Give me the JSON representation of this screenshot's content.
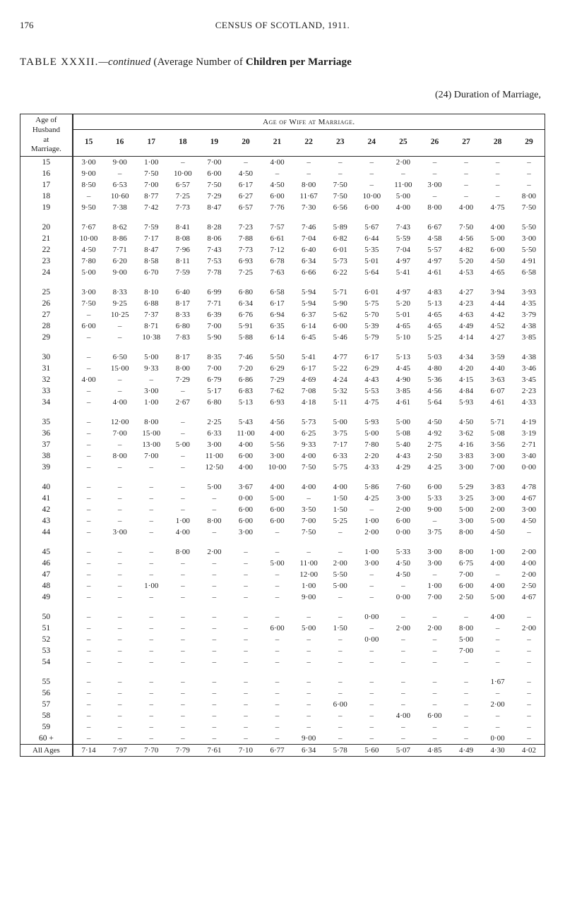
{
  "page": {
    "number": "176",
    "running_title": "CENSUS OF SCOTLAND, 1911."
  },
  "caption": {
    "label_prefix": "TABLE ",
    "roman": "XXXII.",
    "cont": "—continued",
    "rest": " (Average Number of ",
    "bold_tail": "Children per Marriage"
  },
  "duration_line": "(24) Duration of Marriage,",
  "headers": {
    "stub": [
      "Age of",
      "Husband",
      "at",
      "Marriage."
    ],
    "wife_span": "Age of Wife at Marriage.",
    "cols": [
      "15",
      "16",
      "17",
      "18",
      "19",
      "20",
      "21",
      "22",
      "23",
      "24",
      "25",
      "26",
      "27",
      "28",
      "29"
    ]
  },
  "dash": "–",
  "groups": [
    {
      "rows": [
        {
          "label": "15",
          "v": [
            "3·00",
            "9·00",
            "1·00",
            "–",
            "7·00",
            "–",
            "4·00",
            "–",
            "–",
            "–",
            "2·00",
            "–",
            "–",
            "–",
            "–"
          ]
        },
        {
          "label": "16",
          "v": [
            "9·00",
            "–",
            "7·50",
            "10·00",
            "6·00",
            "4·50",
            "–",
            "–",
            "–",
            "–",
            "–",
            "–",
            "–",
            "–",
            "–"
          ]
        },
        {
          "label": "17",
          "v": [
            "8·50",
            "6·53",
            "7·00",
            "6·57",
            "7·50",
            "6·17",
            "4·50",
            "8·00",
            "7·50",
            "–",
            "11·00",
            "3·00",
            "–",
            "–",
            "–"
          ]
        },
        {
          "label": "18",
          "v": [
            "–",
            "10·60",
            "8·77",
            "7·25",
            "7·29",
            "6·27",
            "6·00",
            "11·67",
            "7·50",
            "10·00",
            "5·00",
            "–",
            "–",
            "–",
            "8·00"
          ]
        },
        {
          "label": "19",
          "v": [
            "9·50",
            "7·38",
            "7·42",
            "7·73",
            "8·47",
            "6·57",
            "7·76",
            "7·30",
            "6·56",
            "6·00",
            "4·00",
            "8·00",
            "4·00",
            "4·75",
            "7·50"
          ]
        }
      ]
    },
    {
      "rows": [
        {
          "label": "20",
          "v": [
            "7·67",
            "8·62",
            "7·59",
            "8·41",
            "8·28",
            "7·23",
            "7·57",
            "7·46",
            "5·89",
            "5·67",
            "7·43",
            "6·67",
            "7·50",
            "4·00",
            "5·50"
          ]
        },
        {
          "label": "21",
          "v": [
            "10·00",
            "8·86",
            "7·17",
            "8·08",
            "8·06",
            "7·88",
            "6·61",
            "7·04",
            "6·82",
            "6·44",
            "5·59",
            "4·58",
            "4·56",
            "5·00",
            "3·00"
          ]
        },
        {
          "label": "22",
          "v": [
            "4·50",
            "7·71",
            "8·47",
            "7·96",
            "7·43",
            "7·73",
            "7·12",
            "6·40",
            "6·01",
            "5·35",
            "7·04",
            "5·57",
            "4·82",
            "6·00",
            "5·50"
          ]
        },
        {
          "label": "23",
          "v": [
            "7·80",
            "6·20",
            "8·58",
            "8·11",
            "7·53",
            "6·93",
            "6·78",
            "6·34",
            "5·73",
            "5·01",
            "4·97",
            "4·97",
            "5·20",
            "4·50",
            "4·91"
          ]
        },
        {
          "label": "24",
          "v": [
            "5·00",
            "9·00",
            "6·70",
            "7·59",
            "7·78",
            "7·25",
            "7·63",
            "6·66",
            "6·22",
            "5·64",
            "5·41",
            "4·61",
            "4·53",
            "4·65",
            "6·58"
          ]
        }
      ]
    },
    {
      "rows": [
        {
          "label": "25",
          "v": [
            "3·00",
            "8·33",
            "8·10",
            "6·40",
            "6·99",
            "6·80",
            "6·58",
            "5·94",
            "5·71",
            "6·01",
            "4·97",
            "4·83",
            "4·27",
            "3·94",
            "3·93"
          ]
        },
        {
          "label": "26",
          "v": [
            "7·50",
            "9·25",
            "6·88",
            "8·17",
            "7·71",
            "6·34",
            "6·17",
            "5·94",
            "5·90",
            "5·75",
            "5·20",
            "5·13",
            "4·23",
            "4·44",
            "4·35"
          ]
        },
        {
          "label": "27",
          "v": [
            "–",
            "10·25",
            "7·37",
            "8·33",
            "6·39",
            "6·76",
            "6·94",
            "6·37",
            "5·62",
            "5·70",
            "5·01",
            "4·65",
            "4·63",
            "4·42",
            "3·79"
          ]
        },
        {
          "label": "28",
          "v": [
            "6·00",
            "–",
            "8·71",
            "6·80",
            "7·00",
            "5·91",
            "6·35",
            "6·14",
            "6·00",
            "5·39",
            "4·65",
            "4·65",
            "4·49",
            "4·52",
            "4·38"
          ]
        },
        {
          "label": "29",
          "v": [
            "–",
            "–",
            "10·38",
            "7·83",
            "5·90",
            "5·88",
            "6·14",
            "6·45",
            "5·46",
            "5·79",
            "5·10",
            "5·25",
            "4·14",
            "4·27",
            "3·85"
          ]
        }
      ]
    },
    {
      "rows": [
        {
          "label": "30",
          "v": [
            "–",
            "6·50",
            "5·00",
            "8·17",
            "8·35",
            "7·46",
            "5·50",
            "5·41",
            "4·77",
            "6·17",
            "5·13",
            "5·03",
            "4·34",
            "3·59",
            "4·38"
          ]
        },
        {
          "label": "31",
          "v": [
            "–",
            "15·00",
            "9·33",
            "8·00",
            "7·00",
            "7·20",
            "6·29",
            "6·17",
            "5·22",
            "6·29",
            "4·45",
            "4·80",
            "4·20",
            "4·40",
            "3·46"
          ]
        },
        {
          "label": "32",
          "v": [
            "4·00",
            "–",
            "–",
            "7·29",
            "6·79",
            "6·86",
            "7·29",
            "4·69",
            "4·24",
            "4·43",
            "4·90",
            "5·36",
            "4·15",
            "3·63",
            "3·45"
          ]
        },
        {
          "label": "33",
          "v": [
            "–",
            "–",
            "3·00",
            "–",
            "5·17",
            "6·83",
            "7·62",
            "7·08",
            "5·32",
            "5·53",
            "3·85",
            "4·56",
            "4·84",
            "6·07",
            "2·23"
          ]
        },
        {
          "label": "34",
          "v": [
            "–",
            "4·00",
            "1·00",
            "2·67",
            "6·80",
            "5·13",
            "6·93",
            "4·18",
            "5·11",
            "4·75",
            "4·61",
            "5·64",
            "5·93",
            "4·61",
            "4·33"
          ]
        }
      ]
    },
    {
      "rows": [
        {
          "label": "35",
          "v": [
            "–",
            "12·00",
            "8·00",
            "–",
            "2·25",
            "5·43",
            "4·56",
            "5·73",
            "5·00",
            "5·93",
            "5·00",
            "4·50",
            "4·50",
            "5·71",
            "4·19"
          ]
        },
        {
          "label": "36",
          "v": [
            "–",
            "7·00",
            "15·00",
            "–",
            "6·33",
            "11·00",
            "4·00",
            "6·25",
            "3·75",
            "5·00",
            "5·08",
            "4·92",
            "3·62",
            "5·08",
            "3·19"
          ]
        },
        {
          "label": "37",
          "v": [
            "–",
            "–",
            "13·00",
            "5·00",
            "3·00",
            "4·00",
            "5·56",
            "9·33",
            "7·17",
            "7·80",
            "5·40",
            "2·75",
            "4·16",
            "3·56",
            "2·71"
          ]
        },
        {
          "label": "38",
          "v": [
            "–",
            "8·00",
            "7·00",
            "–",
            "11·00",
            "6·00",
            "3·00",
            "4·00",
            "6·33",
            "2·20",
            "4·43",
            "2·50",
            "3·83",
            "3·00",
            "3·40"
          ]
        },
        {
          "label": "39",
          "v": [
            "–",
            "–",
            "–",
            "–",
            "12·50",
            "4·00",
            "10·00",
            "7·50",
            "5·75",
            "4·33",
            "4·29",
            "4·25",
            "3·00",
            "7·00",
            "0·00"
          ]
        }
      ]
    },
    {
      "rows": [
        {
          "label": "40",
          "v": [
            "–",
            "–",
            "–",
            "–",
            "5·00",
            "3·67",
            "4·00",
            "4·00",
            "4·00",
            "5·86",
            "7·60",
            "6·00",
            "5·29",
            "3·83",
            "4·78"
          ]
        },
        {
          "label": "41",
          "v": [
            "–",
            "–",
            "–",
            "–",
            "–",
            "0·00",
            "5·00",
            "–",
            "1·50",
            "4·25",
            "3·00",
            "5·33",
            "3·25",
            "3·00",
            "4·67"
          ]
        },
        {
          "label": "42",
          "v": [
            "–",
            "–",
            "–",
            "–",
            "–",
            "6·00",
            "6·00",
            "3·50",
            "1·50",
            "–",
            "2·00",
            "9·00",
            "5·00",
            "2·00",
            "3·00"
          ]
        },
        {
          "label": "43",
          "v": [
            "–",
            "–",
            "–",
            "1·00",
            "8·00",
            "6·00",
            "6·00",
            "7·00",
            "5·25",
            "1·00",
            "6·00",
            "–",
            "3·00",
            "5·00",
            "4·50"
          ]
        },
        {
          "label": "44",
          "v": [
            "–",
            "3·00",
            "–",
            "4·00",
            "–",
            "3·00",
            "–",
            "7·50",
            "–",
            "2·00",
            "0·00",
            "3·75",
            "8·00",
            "4·50",
            "–"
          ]
        }
      ]
    },
    {
      "rows": [
        {
          "label": "45",
          "v": [
            "–",
            "–",
            "–",
            "8·00",
            "2·00",
            "–",
            "–",
            "–",
            "–",
            "1·00",
            "5·33",
            "3·00",
            "8·00",
            "1·00",
            "2·00"
          ]
        },
        {
          "label": "46",
          "v": [
            "–",
            "–",
            "–",
            "–",
            "–",
            "–",
            "5·00",
            "11·00",
            "2·00",
            "3·00",
            "4·50",
            "3·00",
            "6·75",
            "4·00",
            "4·00"
          ]
        },
        {
          "label": "47",
          "v": [
            "–",
            "–",
            "–",
            "–",
            "–",
            "–",
            "–",
            "12·00",
            "5·50",
            "–",
            "4·50",
            "–",
            "7·00",
            "–",
            "2·00"
          ]
        },
        {
          "label": "48",
          "v": [
            "–",
            "–",
            "1·00",
            "–",
            "–",
            "–",
            "–",
            "1·00",
            "5·00",
            "–",
            "–",
            "1·00",
            "6·00",
            "4·00",
            "2·50"
          ]
        },
        {
          "label": "49",
          "v": [
            "–",
            "–",
            "–",
            "–",
            "–",
            "–",
            "–",
            "9·00",
            "–",
            "–",
            "0·00",
            "7·00",
            "2·50",
            "5·00",
            "4·67"
          ]
        }
      ]
    },
    {
      "rows": [
        {
          "label": "50",
          "v": [
            "–",
            "–",
            "–",
            "–",
            "–",
            "–",
            "–",
            "–",
            "–",
            "0·00",
            "–",
            "–",
            "–",
            "4·00",
            "–"
          ]
        },
        {
          "label": "51",
          "v": [
            "–",
            "–",
            "–",
            "–",
            "–",
            "–",
            "6·00",
            "5·00",
            "1·50",
            "–",
            "2·00",
            "2·00",
            "8·00",
            "–",
            "2·00"
          ]
        },
        {
          "label": "52",
          "v": [
            "–",
            "–",
            "–",
            "–",
            "–",
            "–",
            "–",
            "–",
            "–",
            "0·00",
            "–",
            "–",
            "5·00",
            "–",
            "–"
          ]
        },
        {
          "label": "53",
          "v": [
            "–",
            "–",
            "–",
            "–",
            "–",
            "–",
            "–",
            "–",
            "–",
            "–",
            "–",
            "–",
            "7·00",
            "–",
            "–"
          ]
        },
        {
          "label": "54",
          "v": [
            "–",
            "–",
            "–",
            "–",
            "–",
            "–",
            "–",
            "–",
            "–",
            "–",
            "–",
            "–",
            "–",
            "–",
            "–"
          ]
        }
      ]
    },
    {
      "rows": [
        {
          "label": "55",
          "v": [
            "–",
            "–",
            "–",
            "–",
            "–",
            "–",
            "–",
            "–",
            "–",
            "–",
            "–",
            "–",
            "–",
            "1·67",
            "–"
          ]
        },
        {
          "label": "56",
          "v": [
            "–",
            "–",
            "–",
            "–",
            "–",
            "–",
            "–",
            "–",
            "–",
            "–",
            "–",
            "–",
            "–",
            "–",
            "–"
          ]
        },
        {
          "label": "57",
          "v": [
            "–",
            "–",
            "–",
            "–",
            "–",
            "–",
            "–",
            "–",
            "6·00",
            "–",
            "–",
            "–",
            "–",
            "2·00",
            "–"
          ]
        },
        {
          "label": "58",
          "v": [
            "–",
            "–",
            "–",
            "–",
            "–",
            "–",
            "–",
            "–",
            "–",
            "–",
            "4·00",
            "6·00",
            "–",
            "–",
            "–"
          ]
        },
        {
          "label": "59",
          "v": [
            "–",
            "–",
            "–",
            "–",
            "–",
            "–",
            "–",
            "–",
            "–",
            "–",
            "–",
            "–",
            "–",
            "–",
            "–"
          ]
        },
        {
          "label": "60 +",
          "v": [
            "–",
            "–",
            "–",
            "–",
            "–",
            "–",
            "–",
            "9·00",
            "–",
            "–",
            "–",
            "–",
            "–",
            "0·00",
            "–"
          ]
        }
      ]
    }
  ],
  "footer": {
    "label": "All Ages",
    "v": [
      "7·14",
      "7·97",
      "7·70",
      "7·79",
      "7·61",
      "7·10",
      "6·77",
      "6·34",
      "5·78",
      "5·60",
      "5·07",
      "4·85",
      "4·49",
      "4·30",
      "4·02"
    ]
  }
}
